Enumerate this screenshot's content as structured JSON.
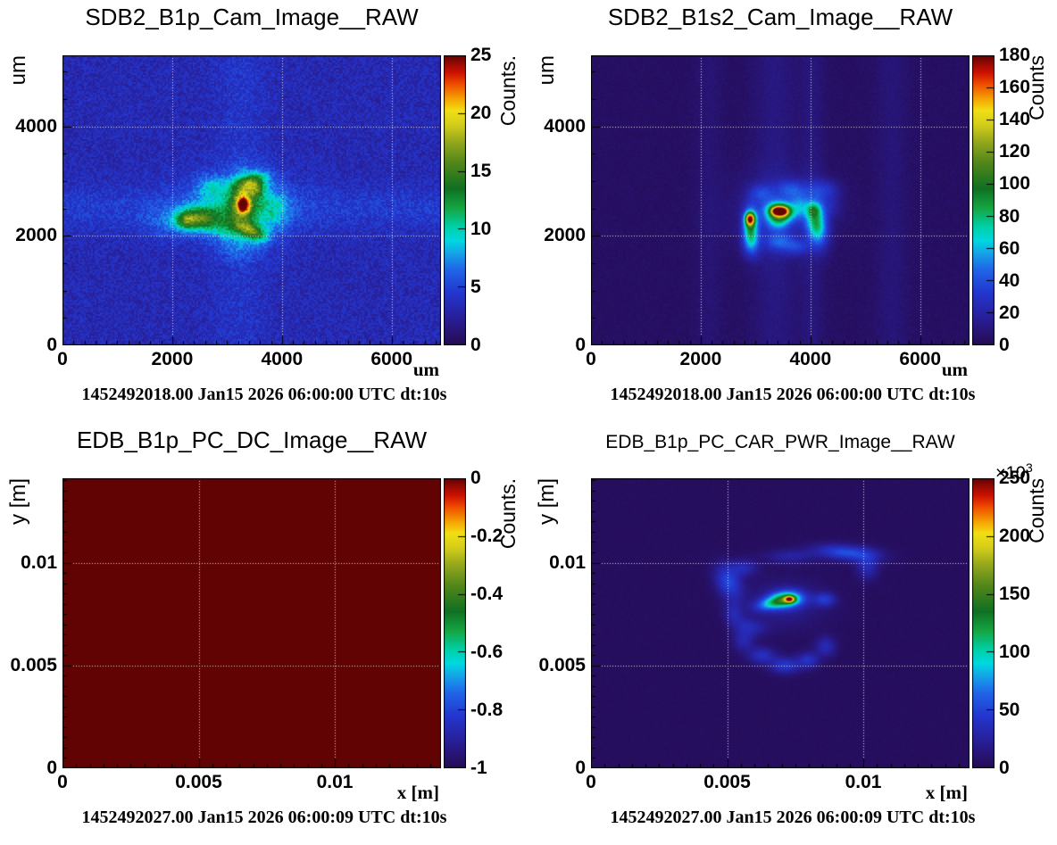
{
  "page": {
    "background": "#ffffff",
    "frame_color": "#000000",
    "grid_color": "#dcdcdc"
  },
  "palette": {
    "stops": [
      [
        0.0,
        "#260b53"
      ],
      [
        0.1,
        "#28219e"
      ],
      [
        0.18,
        "#2337cf"
      ],
      [
        0.26,
        "#2066e8"
      ],
      [
        0.32,
        "#14a7e8"
      ],
      [
        0.36,
        "#00d9e0"
      ],
      [
        0.41,
        "#00cfa4"
      ],
      [
        0.47,
        "#15a845"
      ],
      [
        0.54,
        "#107022"
      ],
      [
        0.63,
        "#53871a"
      ],
      [
        0.7,
        "#93a71c"
      ],
      [
        0.76,
        "#d4cd1a"
      ],
      [
        0.81,
        "#f2df15"
      ],
      [
        0.85,
        "#f5a302"
      ],
      [
        0.9,
        "#ef4e00"
      ],
      [
        0.94,
        "#cf1200"
      ],
      [
        1.0,
        "#620303"
      ]
    ]
  },
  "chart_data": [
    {
      "type": "heatmap",
      "title": "SDB2_B1p_Cam_Image__RAW",
      "x_title": "um",
      "y_title": "um",
      "x_range": [
        0,
        6900
      ],
      "y_range": [
        0,
        5300
      ],
      "x_ticks": [
        {
          "v": 0,
          "label": "0"
        },
        {
          "v": 2000,
          "label": "2000"
        },
        {
          "v": 4000,
          "label": "4000"
        },
        {
          "v": 6000,
          "label": "6000"
        }
      ],
      "y_ticks": [
        {
          "v": 0,
          "label": "0"
        },
        {
          "v": 2000,
          "label": "2000"
        },
        {
          "v": 4000,
          "label": "4000"
        }
      ],
      "x_minor_step": 200,
      "y_minor_step": 500,
      "grid_x": [
        2000,
        4000,
        6000
      ],
      "grid_y": [
        2000,
        4000
      ],
      "colorbar": {
        "title": "Counts.",
        "min": 0,
        "max": 25,
        "ticks": [
          {
            "v": 0,
            "label": "0"
          },
          {
            "v": 5,
            "label": "5"
          },
          {
            "v": 10,
            "label": "10"
          },
          {
            "v": 15,
            "label": "15"
          },
          {
            "v": 20,
            "label": "20"
          },
          {
            "v": 25,
            "label": "25"
          }
        ]
      },
      "timestamp": "1452492018.00 Jan15 2026 06:00:00 UTC dt:10s",
      "image": {
        "background": 3.3,
        "noise": 1.2,
        "noise_cell": 2,
        "blobs": [
          {
            "x": 3150,
            "y": 2550,
            "sx": 800,
            "sy": 450,
            "amp": 2.0
          },
          {
            "x": 3250,
            "y": 2500,
            "sx": 450,
            "sy": 300,
            "amp": 2.3
          },
          {
            "x": 3290,
            "y": 2680,
            "sx": 180,
            "sy": 300,
            "amp": 8,
            "rot": -0.12
          },
          {
            "x": 3480,
            "y": 2980,
            "sx": 200,
            "sy": 110,
            "amp": 7.5,
            "rot": 0.35
          },
          {
            "x": 3560,
            "y": 2820,
            "sx": 90,
            "sy": 90,
            "amp": 4
          },
          {
            "x": 3300,
            "y": 2560,
            "sx": 80,
            "sy": 105,
            "amp": 12
          },
          {
            "x": 2470,
            "y": 2320,
            "sx": 280,
            "sy": 150,
            "amp": 9.5,
            "rot": 0.08
          },
          {
            "x": 2260,
            "y": 2280,
            "sx": 120,
            "sy": 100,
            "amp": 4
          },
          {
            "x": 3450,
            "y": 2090,
            "sx": 200,
            "sy": 100,
            "amp": 9,
            "rot": -0.45
          },
          {
            "x": 3000,
            "y": 2150,
            "sx": 260,
            "sy": 140,
            "amp": 3.5
          },
          {
            "x": 2720,
            "y": 2900,
            "sx": 220,
            "sy": 150,
            "amp": 3.5
          },
          {
            "x": 3850,
            "y": 2480,
            "sx": 200,
            "sy": 280,
            "amp": 3.2
          },
          {
            "x": 3250,
            "y": 1800,
            "sx": 300,
            "sy": 200,
            "amp": 2.2
          },
          {
            "x": 1900,
            "y": 2250,
            "sx": 350,
            "sy": 220,
            "amp": 1.6
          }
        ],
        "v_stripes": [
          {
            "x": 3250,
            "sx": 350,
            "amp": 0.9
          }
        ],
        "h_stripes": [
          {
            "y": 2500,
            "sy": 280,
            "amp": 1.3
          }
        ]
      }
    },
    {
      "type": "heatmap",
      "title": "SDB2_B1s2_Cam_Image__RAW",
      "x_title": "um",
      "y_title": "um",
      "x_range": [
        0,
        6900
      ],
      "y_range": [
        0,
        5300
      ],
      "x_ticks": [
        {
          "v": 0,
          "label": "0"
        },
        {
          "v": 2000,
          "label": "2000"
        },
        {
          "v": 4000,
          "label": "4000"
        },
        {
          "v": 6000,
          "label": "6000"
        }
      ],
      "y_ticks": [
        {
          "v": 0,
          "label": "0"
        },
        {
          "v": 2000,
          "label": "2000"
        },
        {
          "v": 4000,
          "label": "4000"
        }
      ],
      "x_minor_step": 200,
      "y_minor_step": 500,
      "grid_x": [
        2000,
        4000,
        6000
      ],
      "grid_y": [
        2000,
        4000
      ],
      "colorbar": {
        "title": "Counts",
        "min": 0,
        "max": 180,
        "ticks": [
          {
            "v": 0,
            "label": "0"
          },
          {
            "v": 20,
            "label": "20"
          },
          {
            "v": 40,
            "label": "40"
          },
          {
            "v": 60,
            "label": "60"
          },
          {
            "v": 80,
            "label": "80"
          },
          {
            "v": 100,
            "label": "100"
          },
          {
            "v": 120,
            "label": "120"
          },
          {
            "v": 140,
            "label": "140"
          },
          {
            "v": 160,
            "label": "160"
          },
          {
            "v": 180,
            "label": "180"
          }
        ]
      },
      "timestamp": "1452492018.00 Jan15 2026 06:00:00 UTC dt:10s",
      "image": {
        "background": 4,
        "noise": 1.8,
        "noise_cell": 2,
        "blobs": [
          {
            "x": 3430,
            "y": 2420,
            "sx": 600,
            "sy": 480,
            "amp": 14
          },
          {
            "x": 2905,
            "y": 2180,
            "sx": 95,
            "sy": 230,
            "amp": 70
          },
          {
            "x": 2900,
            "y": 2310,
            "sx": 60,
            "sy": 80,
            "amp": 120
          },
          {
            "x": 3440,
            "y": 2440,
            "sx": 185,
            "sy": 125,
            "amp": 85,
            "rot": -0.08
          },
          {
            "x": 3440,
            "y": 2450,
            "sx": 115,
            "sy": 80,
            "amp": 70
          },
          {
            "x": 3380,
            "y": 2455,
            "sx": 60,
            "sy": 45,
            "amp": 55
          },
          {
            "x": 3510,
            "y": 2450,
            "sx": 65,
            "sy": 48,
            "amp": 50
          },
          {
            "x": 4110,
            "y": 2220,
            "sx": 130,
            "sy": 270,
            "amp": 70,
            "rot": 0.15
          },
          {
            "x": 4060,
            "y": 2480,
            "sx": 90,
            "sy": 90,
            "amp": 35
          },
          {
            "x": 3650,
            "y": 2850,
            "sx": 180,
            "sy": 120,
            "amp": 26
          },
          {
            "x": 4230,
            "y": 2850,
            "sx": 200,
            "sy": 130,
            "amp": 22
          },
          {
            "x": 3100,
            "y": 2780,
            "sx": 160,
            "sy": 120,
            "amp": 22
          },
          {
            "x": 3420,
            "y": 1900,
            "sx": 180,
            "sy": 120,
            "amp": 28
          },
          {
            "x": 3750,
            "y": 1800,
            "sx": 160,
            "sy": 110,
            "amp": 22
          },
          {
            "x": 2930,
            "y": 1850,
            "sx": 110,
            "sy": 180,
            "amp": 30
          },
          {
            "x": 3400,
            "y": 2230,
            "sx": 150,
            "sy": 100,
            "amp": 30
          },
          {
            "x": 3800,
            "y": 2550,
            "sx": 120,
            "sy": 150,
            "amp": 30
          },
          {
            "x": 4350,
            "y": 2550,
            "sx": 150,
            "sy": 150,
            "amp": 14
          }
        ],
        "v_stripes": [
          {
            "x": 2150,
            "sx": 170,
            "amp": 4
          },
          {
            "x": 3350,
            "sx": 280,
            "amp": 7
          },
          {
            "x": 4030,
            "sx": 150,
            "amp": 6
          },
          {
            "x": 5480,
            "sx": 200,
            "amp": 5
          }
        ],
        "h_stripes": []
      }
    },
    {
      "type": "heatmap",
      "title": "EDB_B1p_PC_DC_Image__RAW",
      "x_title": "x [m]",
      "y_title": "y [m]",
      "x_range": [
        0,
        0.0139
      ],
      "y_range": [
        0,
        0.0141
      ],
      "x_ticks": [
        {
          "v": 0,
          "label": "0"
        },
        {
          "v": 0.005,
          "label": "0.005"
        },
        {
          "v": 0.01,
          "label": "0.01"
        }
      ],
      "y_ticks": [
        {
          "v": 0,
          "label": "0"
        },
        {
          "v": 0.005,
          "label": "0.005"
        },
        {
          "v": 0.01,
          "label": "0.01"
        }
      ],
      "x_minor_step": 0.0005,
      "y_minor_step": 0.0005,
      "grid_x": [
        0.005,
        0.01
      ],
      "grid_y": [
        0.005,
        0.01
      ],
      "colorbar": {
        "title": "Counts.",
        "min": -1,
        "max": 0,
        "ticks": [
          {
            "v": 0,
            "label": "0"
          },
          {
            "v": -0.2,
            "label": "-0.2"
          },
          {
            "v": -0.4,
            "label": "-0.4"
          },
          {
            "v": -0.6,
            "label": "-0.6"
          },
          {
            "v": -0.8,
            "label": "-0.8"
          },
          {
            "v": -1,
            "label": "-1"
          }
        ]
      },
      "timestamp": "1452492027.00 Jan15 2026 06:00:09 UTC dt:10s",
      "image": {
        "background": 0,
        "noise": 0,
        "noise_cell": 2,
        "blobs": [],
        "v_stripes": [],
        "h_stripes": []
      }
    },
    {
      "type": "heatmap",
      "title": "EDB_B1p_PC_CAR_PWR_Image__RAW",
      "x_title": "x [m]",
      "y_title": "y [m]",
      "x_range": [
        0,
        0.0139
      ],
      "y_range": [
        0,
        0.0141
      ],
      "x_ticks": [
        {
          "v": 0,
          "label": "0"
        },
        {
          "v": 0.005,
          "label": "0.005"
        },
        {
          "v": 0.01,
          "label": "0.01"
        }
      ],
      "y_ticks": [
        {
          "v": 0,
          "label": "0"
        },
        {
          "v": 0.005,
          "label": "0.005"
        },
        {
          "v": 0.01,
          "label": "0.01"
        }
      ],
      "x_minor_step": 0.0005,
      "y_minor_step": 0.0005,
      "grid_x": [
        0.005,
        0.01
      ],
      "grid_y": [
        0.005,
        0.01
      ],
      "colorbar": {
        "title": "Counts",
        "min": 0,
        "max": 250,
        "multiplier_base": "×10",
        "multiplier_exp": "3",
        "ticks": [
          {
            "v": 0,
            "label": "0"
          },
          {
            "v": 50,
            "label": "50"
          },
          {
            "v": 100,
            "label": "100"
          },
          {
            "v": 150,
            "label": "150"
          },
          {
            "v": 200,
            "label": "200"
          },
          {
            "v": 250,
            "label": "250"
          }
        ]
      },
      "timestamp": "1452492027.00 Jan15 2026 06:00:09 UTC dt:10s",
      "image": {
        "background": 4,
        "noise": 1.5,
        "noise_cell": 2,
        "blobs": [
          {
            "x": 0.0071,
            "y": 0.008,
            "sx": 0.001,
            "sy": 0.0008,
            "amp": 18
          },
          {
            "x": 0.0072,
            "y": 0.00822,
            "sx": 0.00042,
            "sy": 0.00028,
            "amp": 110,
            "rot": 0.1
          },
          {
            "x": 0.0073,
            "y": 0.00822,
            "sx": 0.00013,
            "sy": 0.00011,
            "amp": 130
          },
          {
            "x": 0.0066,
            "y": 0.008,
            "sx": 0.00042,
            "sy": 0.00022,
            "amp": 60,
            "rot": 0.3
          },
          {
            "x": 0.00505,
            "y": 0.00905,
            "sx": 0.00032,
            "sy": 0.0006,
            "amp": 48,
            "rot": 0.25
          },
          {
            "x": 0.0056,
            "y": 0.00975,
            "sx": 0.00035,
            "sy": 0.00028,
            "amp": 28
          },
          {
            "x": 0.0094,
            "y": 0.01048,
            "sx": 0.0008,
            "sy": 0.00026,
            "amp": 52,
            "rot": -0.12
          },
          {
            "x": 0.01015,
            "y": 0.0098,
            "sx": 0.00028,
            "sy": 0.00042,
            "amp": 30
          },
          {
            "x": 0.0073,
            "y": 0.0103,
            "sx": 0.00065,
            "sy": 0.00024,
            "amp": 22
          },
          {
            "x": 0.00858,
            "y": 0.0082,
            "sx": 0.00028,
            "sy": 0.00024,
            "amp": 38
          },
          {
            "x": 0.0056,
            "y": 0.0062,
            "sx": 0.00028,
            "sy": 0.00038,
            "amp": 26
          },
          {
            "x": 0.00628,
            "y": 0.00548,
            "sx": 0.00034,
            "sy": 0.00028,
            "amp": 34
          },
          {
            "x": 0.00712,
            "y": 0.005,
            "sx": 0.00038,
            "sy": 0.00028,
            "amp": 40
          },
          {
            "x": 0.00798,
            "y": 0.00526,
            "sx": 0.00028,
            "sy": 0.00028,
            "amp": 34
          },
          {
            "x": 0.00862,
            "y": 0.00592,
            "sx": 0.00026,
            "sy": 0.00034,
            "amp": 30
          },
          {
            "x": 0.00522,
            "y": 0.00752,
            "sx": 0.00024,
            "sy": 0.0004,
            "amp": 24
          },
          {
            "x": 0.006,
            "y": 0.0068,
            "sx": 0.00038,
            "sy": 0.00028,
            "amp": 18
          },
          {
            "x": 0.0056,
            "y": 0.007,
            "sx": 0.0003,
            "sy": 0.0003,
            "amp": 14
          }
        ],
        "v_stripes": [],
        "h_stripes": []
      }
    }
  ]
}
